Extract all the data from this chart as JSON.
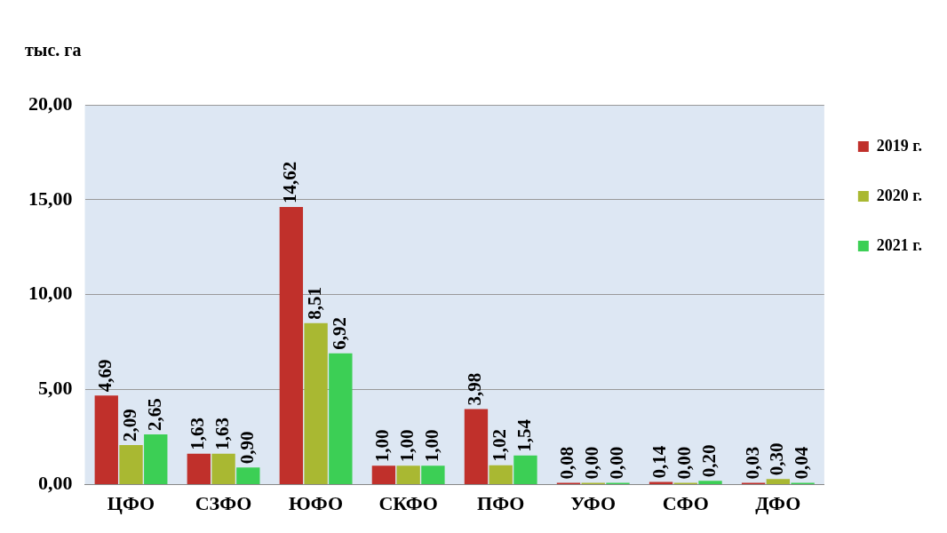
{
  "chart_data": {
    "type": "bar",
    "ylabel": "тыс. га",
    "categories": [
      "ЦФО",
      "СЗФО",
      "ЮФО",
      "СКФО",
      "ПФО",
      "УФО",
      "СФО",
      "ДФО"
    ],
    "series": [
      {
        "name": "2019 г.",
        "color": "#c0302b",
        "values": [
          4.69,
          1.63,
          14.62,
          1.0,
          3.98,
          0.08,
          0.14,
          0.03
        ],
        "value_labels": [
          "4,69",
          "1,63",
          "14,62",
          "1,00",
          "3,98",
          "0,08",
          "0,14",
          "0,03"
        ]
      },
      {
        "name": "2020 г.",
        "color": "#a9b832",
        "values": [
          2.09,
          1.63,
          8.51,
          1.0,
          1.02,
          0.0,
          0.0,
          0.3
        ],
        "value_labels": [
          "2,09",
          "1,63",
          "8,51",
          "1,00",
          "1,02",
          "0,00",
          "0,00",
          "0,30"
        ]
      },
      {
        "name": "2021 г.",
        "color": "#3ccf55",
        "values": [
          2.65,
          0.9,
          6.92,
          1.0,
          1.54,
          0.0,
          0.2,
          0.04
        ],
        "value_labels": [
          "2,65",
          "0,90",
          "6,92",
          "1,00",
          "1,54",
          "0,00",
          "0,20",
          "0,04"
        ]
      }
    ],
    "ylim": [
      0,
      20
    ],
    "yticks": [
      {
        "value": 0,
        "label": "0,00"
      },
      {
        "value": 5,
        "label": "5,00"
      },
      {
        "value": 10,
        "label": "10,00"
      },
      {
        "value": 15,
        "label": "15,00"
      },
      {
        "value": 20,
        "label": "20,00"
      }
    ],
    "grid": "y",
    "legend": "top right"
  }
}
